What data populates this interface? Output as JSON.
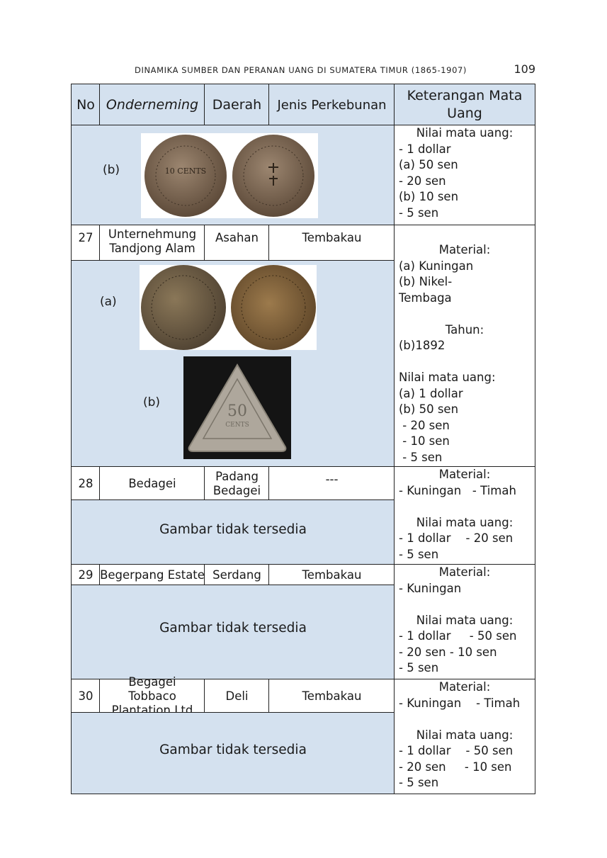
{
  "header": {
    "running_title": "DINAMIKA SUMBER DAN PERANAN UANG DI SUMATERA TIMUR (1865-1907)",
    "page_number": "109"
  },
  "table": {
    "columns": [
      "No",
      "Onderneming",
      "Daerah",
      "Jenis Perkebunan",
      "Keterangan Mata Uang"
    ],
    "prev_row": {
      "image_label": "(b)",
      "coin_a_obverse": "10 CENTS",
      "notes": [
        "Nilai mata uang:",
        "- 1 dollar",
        "(a) 50 sen",
        "- 20 sen",
        "(b) 10 sen",
        "- 5 sen"
      ]
    },
    "rows": [
      {
        "no": "27",
        "onderneming": "Unternehmung Tandjong Alam",
        "daerah": "Asahan",
        "jenis": "Tembakau",
        "image_labels": [
          "(a)",
          "(b)"
        ],
        "triangle_coin_value": "50",
        "triangle_coin_unit": "CENTS",
        "notes": [
          "Material:",
          "(a) Kuningan",
          "(b) Nikel-",
          "Tembaga",
          "",
          "Tahun:",
          "(b)1892",
          "",
          "Nilai mata uang:",
          "(a) 1 dollar",
          "(b) 50 sen",
          " - 20 sen",
          " - 10 sen",
          " - 5 sen"
        ]
      },
      {
        "no": "28",
        "onderneming": "Bedagei",
        "daerah": "Padang Bedagei",
        "jenis": "---",
        "image_note": "Gambar tidak tersedia",
        "notes": [
          "Material:",
          "- Kuningan   - Timah",
          "",
          "Nilai mata uang:",
          "- 1 dollar    - 20 sen",
          "- 5 sen"
        ]
      },
      {
        "no": "29",
        "onderneming": "Begerpang Estate",
        "daerah": "Serdang",
        "jenis": "Tembakau",
        "image_note": "Gambar tidak tersedia",
        "notes": [
          "Material:",
          "- Kuningan",
          "",
          "Nilai mata uang:",
          "- 1 dollar     - 50 sen",
          "- 20 sen - 10 sen",
          "- 5 sen"
        ]
      },
      {
        "no": "30",
        "onderneming": "Begagei Tobbaco Plantation Ltd",
        "daerah": "Deli",
        "jenis": "Tembakau",
        "image_note": "Gambar tidak tersedia",
        "notes": [
          "Material:",
          "- Kuningan    - Timah",
          "",
          "Nilai mata uang:",
          "- 1 dollar    - 50 sen",
          "- 20 sen     - 10 sen",
          "- 5 sen"
        ]
      }
    ]
  },
  "colors": {
    "cell_blue": "#d4e1ef",
    "border": "#222222",
    "coin_brown": "#7a6550",
    "coin_silver": "#b3aea4"
  }
}
